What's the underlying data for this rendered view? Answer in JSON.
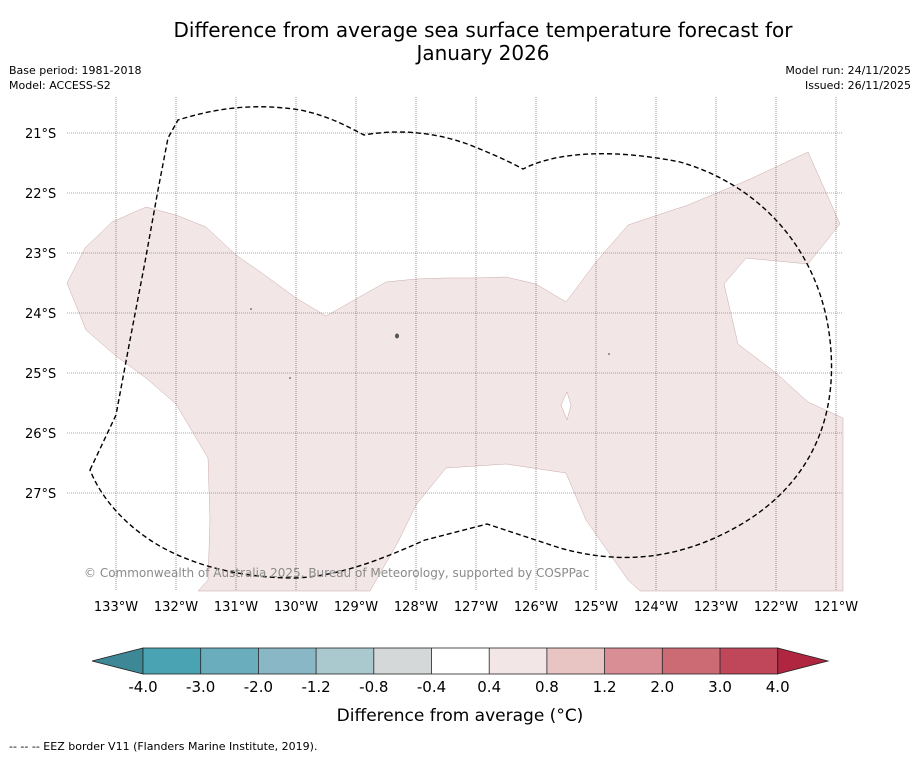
{
  "title": {
    "line1": "Difference from average sea surface temperature forecast for",
    "line2": "January 2026"
  },
  "meta": {
    "base_period": "Base period: 1981-2018",
    "model": "Model: ACCESS-S2",
    "model_run": "Model run: 24/11/2025",
    "issued": "Issued: 26/11/2025"
  },
  "map": {
    "lon_labels": [
      "133°W",
      "132°W",
      "131°W",
      "130°W",
      "129°W",
      "128°W",
      "127°W",
      "126°W",
      "125°W",
      "124°W",
      "123°W",
      "122°W",
      "121°W"
    ],
    "lat_labels": [
      "21°S",
      "22°S",
      "23°S",
      "24°S",
      "25°S",
      "26°S",
      "27°S"
    ],
    "copyright": "© Commonwealth of Australia 2025, Bureau of Meteorology, supported by COSPPac",
    "anomaly_fill_color": "#f3e6e6",
    "anomaly_fill_class": "0.4 to 0.8"
  },
  "colorbar": {
    "label": "Difference from average ($^\\circ$C)",
    "label_text": "Difference from average (",
    "label_unit": "°C)",
    "tick_labels": [
      "-4.0",
      "-3.0",
      "-2.0",
      "-1.2",
      "-0.8",
      "-0.4",
      "0.4",
      "0.8",
      "1.2",
      "2.0",
      "3.0",
      "4.0"
    ],
    "colors": [
      "#3d8896",
      "#4aa3b3",
      "#6aaebd",
      "#8ab7c5",
      "#a9c9cf",
      "#d4d8d9",
      "#ffffff",
      "#f3e6e6",
      "#e8c4c2",
      "#d98e95",
      "#cd6b74",
      "#c0475a",
      "#b0253f"
    ]
  },
  "footnote": "--  --  -- EEZ border V11 (Flanders Marine Institute, 2019)."
}
